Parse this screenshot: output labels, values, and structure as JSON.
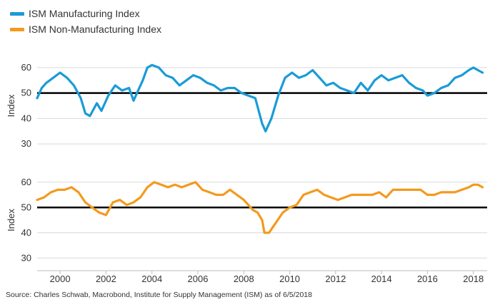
{
  "legend": [
    {
      "label": "ISM Manufacturing Index",
      "color": "#1a9bd7"
    },
    {
      "label": "ISM Non-Manufacturing Index",
      "color": "#f39a1e"
    }
  ],
  "source": "Source: Charles Schwab, Macrobond, Institute for Supply Management (ISM) as of 6/5/2018",
  "chart_data": [
    {
      "type": "line",
      "ylabel": "Index",
      "ylim": [
        25,
        65
      ],
      "yticks": [
        30,
        40,
        50,
        60
      ],
      "xlim": [
        1999.0,
        2018.6
      ],
      "reference_line": 50,
      "grid": "horizontal",
      "series": [
        {
          "name": "ISM Manufacturing Index",
          "color": "#1a9bd7",
          "x": [
            1999.0,
            1999.2,
            1999.4,
            1999.7,
            2000.0,
            2000.3,
            2000.6,
            2000.9,
            2001.1,
            2001.3,
            2001.6,
            2001.8,
            2002.1,
            2002.4,
            2002.7,
            2003.0,
            2003.2,
            2003.4,
            2003.6,
            2003.8,
            2004.0,
            2004.3,
            2004.6,
            2004.9,
            2005.2,
            2005.5,
            2005.8,
            2006.1,
            2006.4,
            2006.7,
            2007.0,
            2007.3,
            2007.6,
            2007.9,
            2008.2,
            2008.5,
            2008.8,
            2008.95,
            2009.2,
            2009.5,
            2009.8,
            2010.1,
            2010.4,
            2010.7,
            2011.0,
            2011.3,
            2011.6,
            2011.9,
            2012.2,
            2012.5,
            2012.8,
            2013.1,
            2013.4,
            2013.7,
            2014.0,
            2014.3,
            2014.6,
            2014.9,
            2015.2,
            2015.5,
            2015.8,
            2016.0,
            2016.3,
            2016.6,
            2016.9,
            2017.2,
            2017.5,
            2017.8,
            2018.0,
            2018.2,
            2018.4
          ],
          "values": [
            48,
            52,
            54,
            56,
            58,
            56,
            53,
            48,
            42,
            41,
            46,
            43,
            49,
            53,
            51,
            52,
            47,
            51,
            55,
            60,
            61,
            60,
            57,
            56,
            53,
            55,
            57,
            56,
            54,
            53,
            51,
            52,
            52,
            50,
            49,
            48,
            38,
            35,
            40,
            49,
            56,
            58,
            56,
            57,
            59,
            56,
            53,
            54,
            52,
            51,
            50,
            54,
            51,
            55,
            57,
            55,
            56,
            57,
            54,
            52,
            51,
            49,
            50,
            52,
            53,
            56,
            57,
            59,
            60,
            59,
            58
          ]
        },
        {
          "name": "ISM Non-Manufacturing Index",
          "color": "#f39a1e",
          "x": [
            1999.0,
            1999.3,
            1999.6,
            1999.9,
            2000.2,
            2000.5,
            2000.8,
            2001.1,
            2001.4,
            2001.7,
            2002.0,
            2002.3,
            2002.6,
            2002.9,
            2003.2,
            2003.5,
            2003.8,
            2004.1,
            2004.4,
            2004.7,
            2005.0,
            2005.3,
            2005.6,
            2005.9,
            2006.2,
            2006.5,
            2006.8,
            2007.1,
            2007.4,
            2007.7,
            2008.0,
            2008.2,
            2008.4,
            2008.6,
            2008.8,
            2008.9,
            2009.1,
            2009.4,
            2009.7,
            2010.0,
            2010.3,
            2010.6,
            2010.9,
            2011.2,
            2011.5,
            2011.8,
            2012.1,
            2012.4,
            2012.7,
            2013.0,
            2013.3,
            2013.6,
            2013.9,
            2014.2,
            2014.5,
            2014.8,
            2015.1,
            2015.4,
            2015.7,
            2016.0,
            2016.3,
            2016.6,
            2016.9,
            2017.2,
            2017.5,
            2017.8,
            2018.0,
            2018.2,
            2018.4
          ],
          "values": [
            53,
            54,
            56,
            57,
            57,
            58,
            56,
            52,
            50,
            48,
            47,
            52,
            53,
            51,
            52,
            54,
            58,
            60,
            59,
            58,
            59,
            58,
            59,
            60,
            57,
            56,
            55,
            55,
            57,
            55,
            53,
            51,
            49,
            48,
            45,
            40,
            40,
            44,
            48,
            50,
            51,
            55,
            56,
            57,
            55,
            54,
            53,
            54,
            55,
            55,
            55,
            55,
            56,
            54,
            57,
            57,
            57,
            57,
            57,
            55,
            55,
            56,
            56,
            56,
            57,
            58,
            59,
            59,
            58
          ]
        }
      ]
    }
  ],
  "x_ticks": [
    "2000",
    "2002",
    "2004",
    "2006",
    "2008",
    "2010",
    "2012",
    "2014",
    "2016",
    "2018"
  ]
}
